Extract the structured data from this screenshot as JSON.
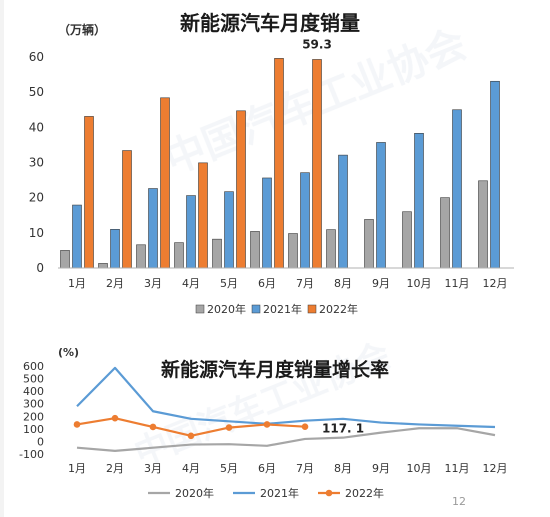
{
  "chart_data": [
    {
      "type": "bar",
      "title": "新能源汽车月度销量",
      "unit_label": "（万辆）",
      "categories": [
        "1月",
        "2月",
        "3月",
        "4月",
        "5月",
        "6月",
        "7月",
        "8月",
        "9月",
        "10月",
        "11月",
        "12月"
      ],
      "ylim": [
        0,
        60
      ],
      "yticks": [
        "0",
        "10",
        "20",
        "30",
        "40",
        "50",
        "60"
      ],
      "grid": false,
      "legend_position": "bottom",
      "series": [
        {
          "name": "2020年",
          "color": "#a6a6a6",
          "values": [
            5.0,
            1.3,
            6.6,
            7.2,
            8.2,
            10.4,
            9.8,
            10.9,
            13.8,
            16.0,
            20.0,
            24.8
          ]
        },
        {
          "name": "2021年",
          "color": "#5b9bd5",
          "values": [
            17.9,
            11.0,
            22.6,
            20.6,
            21.7,
            25.6,
            27.1,
            32.1,
            35.7,
            38.3,
            45.0,
            53.1
          ]
        },
        {
          "name": "2022年",
          "color": "#ed7d31",
          "values": [
            43.1,
            33.4,
            48.4,
            29.9,
            44.7,
            59.6,
            59.3,
            null,
            null,
            null,
            null,
            null
          ]
        }
      ],
      "annotations": [
        {
          "text": "59.3",
          "category": "7月"
        }
      ]
    },
    {
      "type": "line",
      "title": "新能源汽车月度销量增长率",
      "unit_label": "(%)",
      "categories": [
        "1月",
        "2月",
        "3月",
        "4月",
        "5月",
        "6月",
        "7月",
        "8月",
        "9月",
        "10月",
        "11月",
        "12月"
      ],
      "ylim": [
        -100,
        600
      ],
      "yticks": [
        "-100",
        "0",
        "100",
        "200",
        "300",
        "400",
        "500",
        "600"
      ],
      "grid": false,
      "legend_position": "bottom",
      "series": [
        {
          "name": "2020年",
          "color": "#a6a6a6",
          "values": [
            -50,
            -75,
            -50,
            -25,
            -22,
            -35,
            20,
            30,
            70,
            105,
            105,
            50
          ]
        },
        {
          "name": "2021年",
          "color": "#5b9bd5",
          "values": [
            280,
            585,
            240,
            180,
            160,
            140,
            165,
            180,
            150,
            135,
            125,
            115
          ]
        },
        {
          "name": "2022年",
          "color": "#ed7d31",
          "values": [
            135,
            185,
            115,
            45,
            110,
            135,
            117.1,
            null,
            null,
            null,
            null,
            null
          ]
        }
      ],
      "annotations": [
        {
          "text": "117. 1",
          "category": "7月"
        }
      ]
    }
  ],
  "page_number": "12"
}
